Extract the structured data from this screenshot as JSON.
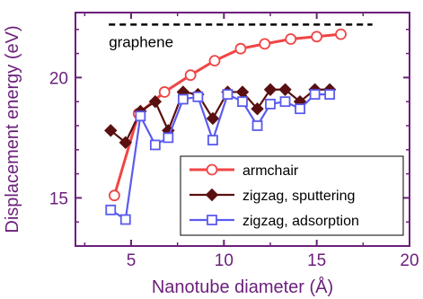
{
  "chart_data": {
    "type": "line",
    "xlabel": "Nanotube diameter (Å)",
    "ylabel": "Displacement energy (eV)",
    "xlim": [
      2,
      20
    ],
    "ylim": [
      13.0,
      22.7
    ],
    "xticks": [
      5,
      10,
      15,
      20
    ],
    "yticks": [
      15,
      20
    ],
    "grid": false,
    "legend_position": "bottom-right",
    "reference_line": {
      "label": "graphene",
      "y": 22.2,
      "x_range": [
        3.8,
        18.0
      ],
      "style": "dashed",
      "color": "#000000"
    },
    "series": [
      {
        "name": "armchair",
        "color": "#f04545",
        "marker": "open-circle",
        "x": [
          4.1,
          5.4,
          6.8,
          8.2,
          9.5,
          10.9,
          12.2,
          13.6,
          15.0,
          16.3
        ],
        "y": [
          15.1,
          18.5,
          19.4,
          20.1,
          20.7,
          21.2,
          21.4,
          21.6,
          21.7,
          21.8
        ]
      },
      {
        "name": "zigzag, sputtering",
        "color": "#5a1010",
        "marker": "filled-diamond",
        "x": [
          3.9,
          4.7,
          5.5,
          6.3,
          7.0,
          7.8,
          8.6,
          9.4,
          10.2,
          11.0,
          11.8,
          12.5,
          13.3,
          14.1,
          14.9,
          15.7
        ],
        "y": [
          17.8,
          17.3,
          18.6,
          19.0,
          17.8,
          19.4,
          19.3,
          18.3,
          19.4,
          19.4,
          18.7,
          19.5,
          19.5,
          19.0,
          19.5,
          19.5
        ]
      },
      {
        "name": "zigzag, adsorption",
        "color": "#5b5bef",
        "marker": "open-square",
        "x": [
          3.9,
          4.7,
          5.5,
          6.3,
          7.0,
          7.8,
          8.6,
          9.4,
          10.2,
          11.0,
          11.8,
          12.5,
          13.3,
          14.1,
          14.9,
          15.7
        ],
        "y": [
          14.5,
          14.1,
          18.4,
          17.2,
          17.5,
          19.1,
          19.2,
          17.4,
          19.3,
          19.0,
          18.0,
          18.9,
          19.0,
          18.7,
          19.3,
          19.3
        ]
      }
    ]
  }
}
